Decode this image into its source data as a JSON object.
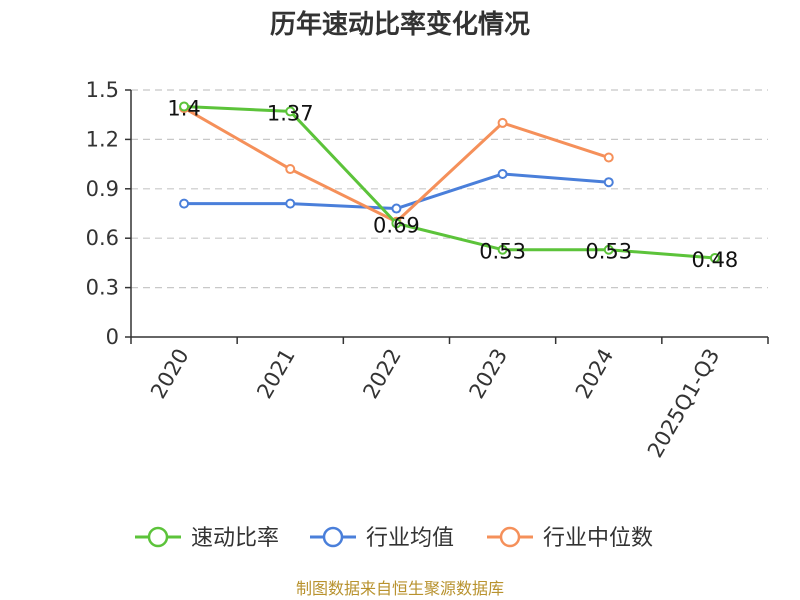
{
  "title": "历年速动比率变化情况",
  "source": "制图数据来自恒生聚源数据库",
  "chart_data": {
    "type": "line",
    "title": "历年速动比率变化情况",
    "xlabel": "",
    "ylabel": "",
    "categories": [
      "2020",
      "2021",
      "2022",
      "2023",
      "2024",
      "2025Q1-Q3"
    ],
    "ylim": [
      0,
      1.5
    ],
    "yticks": [
      "0",
      "0.3",
      "0.6",
      "0.9",
      "1.2",
      "1.5"
    ],
    "grid": true,
    "legend_position": "bottom",
    "series": [
      {
        "name": "速动比率",
        "color": "#5cc33a",
        "values": [
          1.4,
          1.37,
          0.69,
          0.53,
          0.53,
          0.48
        ],
        "labels": [
          "1.4",
          "1.37",
          "0.69",
          "0.53",
          "0.53",
          "0.48"
        ]
      },
      {
        "name": "行业均值",
        "color": "#4a7fda",
        "values": [
          0.81,
          0.81,
          0.78,
          0.99,
          0.94,
          null
        ]
      },
      {
        "name": "行业中位数",
        "color": "#f5905a",
        "values": [
          1.39,
          1.02,
          0.7,
          1.3,
          1.09,
          null
        ]
      }
    ]
  }
}
